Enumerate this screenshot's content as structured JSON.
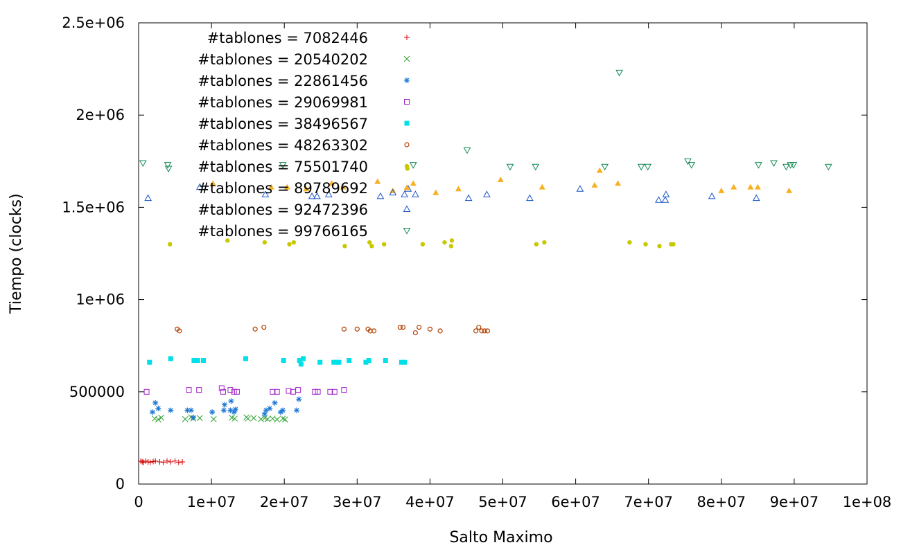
{
  "chart_data": {
    "type": "scatter",
    "title": "",
    "xlabel": "Salto Maximo",
    "ylabel": "Tiempo (clocks)",
    "xlim": [
      0,
      100000000
    ],
    "ylim": [
      0,
      2500000
    ],
    "x_ticks": [
      {
        "value": 0,
        "label": "0"
      },
      {
        "value": 10000000,
        "label": "1e+07"
      },
      {
        "value": 20000000,
        "label": "2e+07"
      },
      {
        "value": 30000000,
        "label": "3e+07"
      },
      {
        "value": 40000000,
        "label": "4e+07"
      },
      {
        "value": 50000000,
        "label": "5e+07"
      },
      {
        "value": 60000000,
        "label": "6e+07"
      },
      {
        "value": 70000000,
        "label": "7e+07"
      },
      {
        "value": 80000000,
        "label": "8e+07"
      },
      {
        "value": 90000000,
        "label": "9e+07"
      },
      {
        "value": 100000000,
        "label": "1e+08"
      }
    ],
    "y_ticks": [
      {
        "value": 0,
        "label": "0"
      },
      {
        "value": 500000,
        "label": "500000"
      },
      {
        "value": 1000000,
        "label": "1e+06"
      },
      {
        "value": 1500000,
        "label": "1.5e+06"
      },
      {
        "value": 2000000,
        "label": "2e+06"
      },
      {
        "value": 2500000,
        "label": "2.5e+06"
      }
    ],
    "grid": false,
    "legend_position": "top-left",
    "series": [
      {
        "name": "#tablones = 7082446",
        "marker": "plus",
        "color": "#d40000",
        "points": [
          [
            300000,
            125000
          ],
          [
            500000,
            120000
          ],
          [
            700000,
            118000
          ],
          [
            1000000,
            125000
          ],
          [
            1300000,
            120000
          ],
          [
            1600000,
            118000
          ],
          [
            2000000,
            122000
          ],
          [
            2300000,
            125000
          ],
          [
            2900000,
            120000
          ],
          [
            3400000,
            118000
          ],
          [
            3900000,
            125000
          ],
          [
            4400000,
            120000
          ],
          [
            5000000,
            125000
          ],
          [
            5500000,
            118000
          ],
          [
            6000000,
            120000
          ]
        ]
      },
      {
        "name": "#tablones = 20540202",
        "marker": "x",
        "color": "#2ca02c",
        "points": [
          [
            2200000,
            355000
          ],
          [
            2700000,
            350000
          ],
          [
            3100000,
            360000
          ],
          [
            6400000,
            352000
          ],
          [
            7200000,
            362000
          ],
          [
            7500000,
            355000
          ],
          [
            8400000,
            358000
          ],
          [
            10300000,
            352000
          ],
          [
            12800000,
            360000
          ],
          [
            13200000,
            355000
          ],
          [
            14800000,
            362000
          ],
          [
            15000000,
            355000
          ],
          [
            15800000,
            358000
          ],
          [
            16800000,
            352000
          ],
          [
            17300000,
            358000
          ],
          [
            17700000,
            352000
          ],
          [
            18400000,
            355000
          ],
          [
            19000000,
            350000
          ],
          [
            19800000,
            355000
          ],
          [
            20100000,
            350000
          ]
        ]
      },
      {
        "name": "#tablones = 22861456",
        "marker": "star",
        "color": "#1f78d4",
        "points": [
          [
            1900000,
            390000
          ],
          [
            2300000,
            440000
          ],
          [
            2700000,
            410000
          ],
          [
            4400000,
            400000
          ],
          [
            6700000,
            400000
          ],
          [
            7200000,
            400000
          ],
          [
            7500000,
            360000
          ],
          [
            10100000,
            390000
          ],
          [
            11700000,
            400000
          ],
          [
            11800000,
            430000
          ],
          [
            12600000,
            400000
          ],
          [
            12700000,
            450000
          ],
          [
            13100000,
            390000
          ],
          [
            13300000,
            405000
          ],
          [
            17300000,
            380000
          ],
          [
            17500000,
            400000
          ],
          [
            18000000,
            410000
          ],
          [
            18700000,
            440000
          ],
          [
            19500000,
            390000
          ],
          [
            19800000,
            400000
          ],
          [
            21700000,
            400000
          ],
          [
            22000000,
            460000
          ]
        ]
      },
      {
        "name": "#tablones = 29069981",
        "marker": "square-open",
        "color": "#a020c8",
        "points": [
          [
            1100000,
            500000
          ],
          [
            6900000,
            510000
          ],
          [
            8300000,
            510000
          ],
          [
            11400000,
            520000
          ],
          [
            11600000,
            500000
          ],
          [
            12600000,
            510000
          ],
          [
            13100000,
            500000
          ],
          [
            13500000,
            500000
          ],
          [
            18400000,
            500000
          ],
          [
            19000000,
            500000
          ],
          [
            20600000,
            505000
          ],
          [
            21200000,
            500000
          ],
          [
            21900000,
            510000
          ],
          [
            24200000,
            500000
          ],
          [
            24600000,
            500000
          ],
          [
            26300000,
            500000
          ],
          [
            26900000,
            500000
          ],
          [
            28200000,
            510000
          ]
        ]
      },
      {
        "name": "#tablones = 38496567",
        "marker": "square-filled",
        "color": "#00e0e8",
        "points": [
          [
            1500000,
            660000
          ],
          [
            4400000,
            680000
          ],
          [
            7600000,
            670000
          ],
          [
            8100000,
            670000
          ],
          [
            8900000,
            670000
          ],
          [
            14700000,
            680000
          ],
          [
            19900000,
            670000
          ],
          [
            22100000,
            670000
          ],
          [
            22300000,
            650000
          ],
          [
            22600000,
            680000
          ],
          [
            24900000,
            660000
          ],
          [
            26800000,
            660000
          ],
          [
            27200000,
            660000
          ],
          [
            27500000,
            660000
          ],
          [
            28900000,
            670000
          ],
          [
            31200000,
            660000
          ],
          [
            31600000,
            670000
          ],
          [
            33900000,
            670000
          ],
          [
            36100000,
            660000
          ],
          [
            36500000,
            660000
          ]
        ]
      },
      {
        "name": "#tablones = 48263302",
        "marker": "circle-open",
        "color": "#b04000",
        "points": [
          [
            5300000,
            840000
          ],
          [
            5600000,
            830000
          ],
          [
            16000000,
            840000
          ],
          [
            17200000,
            850000
          ],
          [
            28200000,
            840000
          ],
          [
            30000000,
            840000
          ],
          [
            31500000,
            840000
          ],
          [
            31800000,
            830000
          ],
          [
            32300000,
            830000
          ],
          [
            35900000,
            850000
          ],
          [
            36300000,
            850000
          ],
          [
            38000000,
            820000
          ],
          [
            38500000,
            850000
          ],
          [
            40000000,
            840000
          ],
          [
            41400000,
            830000
          ],
          [
            46300000,
            830000
          ],
          [
            46700000,
            850000
          ],
          [
            47100000,
            830000
          ],
          [
            47500000,
            830000
          ],
          [
            47900000,
            830000
          ]
        ]
      },
      {
        "name": "#tablones = 75501740",
        "marker": "circle-filled",
        "color": "#c8c800",
        "points": [
          [
            4300000,
            1300000
          ],
          [
            12200000,
            1320000
          ],
          [
            17300000,
            1310000
          ],
          [
            20700000,
            1300000
          ],
          [
            21300000,
            1310000
          ],
          [
            28300000,
            1290000
          ],
          [
            31700000,
            1310000
          ],
          [
            32000000,
            1290000
          ],
          [
            33700000,
            1300000
          ],
          [
            36900000,
            1710000
          ],
          [
            39000000,
            1300000
          ],
          [
            42000000,
            1310000
          ],
          [
            42900000,
            1290000
          ],
          [
            43000000,
            1320000
          ],
          [
            54600000,
            1300000
          ],
          [
            55700000,
            1310000
          ],
          [
            67400000,
            1310000
          ],
          [
            69600000,
            1300000
          ],
          [
            71500000,
            1290000
          ],
          [
            73100000,
            1300000
          ],
          [
            73400000,
            1300000
          ]
        ]
      },
      {
        "name": "#tablones = 89789692",
        "marker": "triangle-filled",
        "color": "#f8b020",
        "points": [
          [
            10200000,
            1630000
          ],
          [
            18200000,
            1610000
          ],
          [
            20400000,
            1610000
          ],
          [
            23000000,
            1600000
          ],
          [
            26500000,
            1630000
          ],
          [
            28100000,
            1610000
          ],
          [
            32800000,
            1640000
          ],
          [
            34900000,
            1590000
          ],
          [
            37700000,
            1630000
          ],
          [
            40800000,
            1580000
          ],
          [
            43900000,
            1600000
          ],
          [
            49700000,
            1650000
          ],
          [
            55400000,
            1610000
          ],
          [
            62600000,
            1620000
          ],
          [
            63300000,
            1700000
          ],
          [
            65800000,
            1630000
          ],
          [
            80000000,
            1590000
          ],
          [
            81700000,
            1610000
          ],
          [
            84000000,
            1610000
          ],
          [
            85000000,
            1610000
          ],
          [
            89300000,
            1590000
          ]
        ]
      },
      {
        "name": "#tablones = 92472396",
        "marker": "triangle-open",
        "color": "#1a55c8",
        "points": [
          [
            1300000,
            1550000
          ],
          [
            8400000,
            1610000
          ],
          [
            17400000,
            1570000
          ],
          [
            23800000,
            1560000
          ],
          [
            24500000,
            1560000
          ],
          [
            26100000,
            1570000
          ],
          [
            33200000,
            1560000
          ],
          [
            34900000,
            1580000
          ],
          [
            36500000,
            1570000
          ],
          [
            37000000,
            1600000
          ],
          [
            38000000,
            1570000
          ],
          [
            45300000,
            1550000
          ],
          [
            47800000,
            1570000
          ],
          [
            53700000,
            1550000
          ],
          [
            60600000,
            1600000
          ],
          [
            71400000,
            1540000
          ],
          [
            72300000,
            1540000
          ],
          [
            72400000,
            1570000
          ],
          [
            78700000,
            1560000
          ],
          [
            84800000,
            1550000
          ]
        ]
      },
      {
        "name": "#tablones = 99766165",
        "marker": "triangle-down-open",
        "color": "#108850",
        "points": [
          [
            600000,
            1740000
          ],
          [
            4000000,
            1730000
          ],
          [
            4100000,
            1710000
          ],
          [
            19800000,
            1730000
          ],
          [
            37700000,
            1730000
          ],
          [
            45100000,
            1810000
          ],
          [
            51000000,
            1720000
          ],
          [
            54500000,
            1720000
          ],
          [
            66000000,
            2230000
          ],
          [
            64000000,
            1720000
          ],
          [
            69000000,
            1720000
          ],
          [
            69900000,
            1720000
          ],
          [
            75400000,
            1750000
          ],
          [
            75900000,
            1730000
          ],
          [
            85100000,
            1730000
          ],
          [
            87200000,
            1740000
          ],
          [
            88900000,
            1720000
          ],
          [
            89500000,
            1730000
          ],
          [
            89900000,
            1730000
          ],
          [
            94700000,
            1720000
          ]
        ]
      }
    ]
  }
}
